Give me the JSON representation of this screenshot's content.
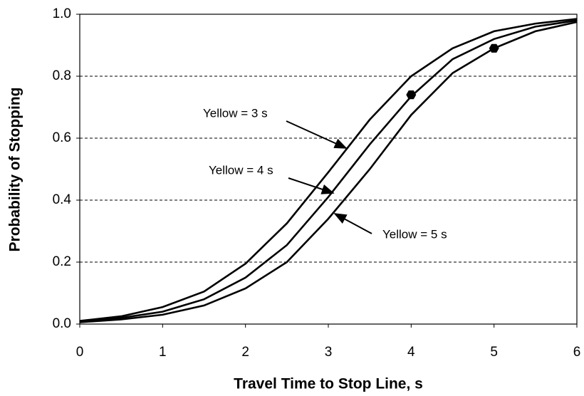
{
  "chart_data": {
    "type": "line",
    "x_label": "Travel Time to Stop Line, s",
    "y_label": "Probability of Stopping",
    "x": [
      0,
      0.5,
      1,
      1.5,
      2,
      2.5,
      3,
      3.5,
      4,
      4.5,
      5,
      5.5,
      6
    ],
    "series": [
      {
        "name": "Yellow = 3 s",
        "color": "#000000",
        "values": [
          0.01,
          0.025,
          0.055,
          0.105,
          0.195,
          0.325,
          0.49,
          0.66,
          0.8,
          0.89,
          0.945,
          0.97,
          0.985
        ]
      },
      {
        "name": "Yellow = 4 s",
        "color": "#000000",
        "values": [
          0.008,
          0.02,
          0.04,
          0.08,
          0.15,
          0.255,
          0.41,
          0.58,
          0.735,
          0.855,
          0.92,
          0.96,
          0.98
        ]
      },
      {
        "name": "Yellow = 5 s",
        "color": "#000000",
        "values": [
          0.006,
          0.015,
          0.03,
          0.06,
          0.115,
          0.2,
          0.34,
          0.5,
          0.675,
          0.81,
          0.89,
          0.945,
          0.975
        ]
      }
    ],
    "markers": {
      "x": [
        4,
        5
      ],
      "values": [
        0.74,
        0.89
      ],
      "color": "#000000"
    },
    "xlim": [
      0,
      6
    ],
    "xticks": [
      0,
      1,
      2,
      3,
      4,
      5,
      6
    ],
    "ylim": [
      0,
      1
    ],
    "yticks": [
      {
        "value": 0,
        "label": "0.0"
      },
      {
        "value": 0.2,
        "label": "0.2"
      },
      {
        "value": 0.4,
        "label": "0.4"
      },
      {
        "value": 0.6,
        "label": "0.6"
      },
      {
        "value": 0.8,
        "label": "0.8"
      },
      {
        "value": 1,
        "label": "1.0"
      }
    ],
    "grid": true
  }
}
